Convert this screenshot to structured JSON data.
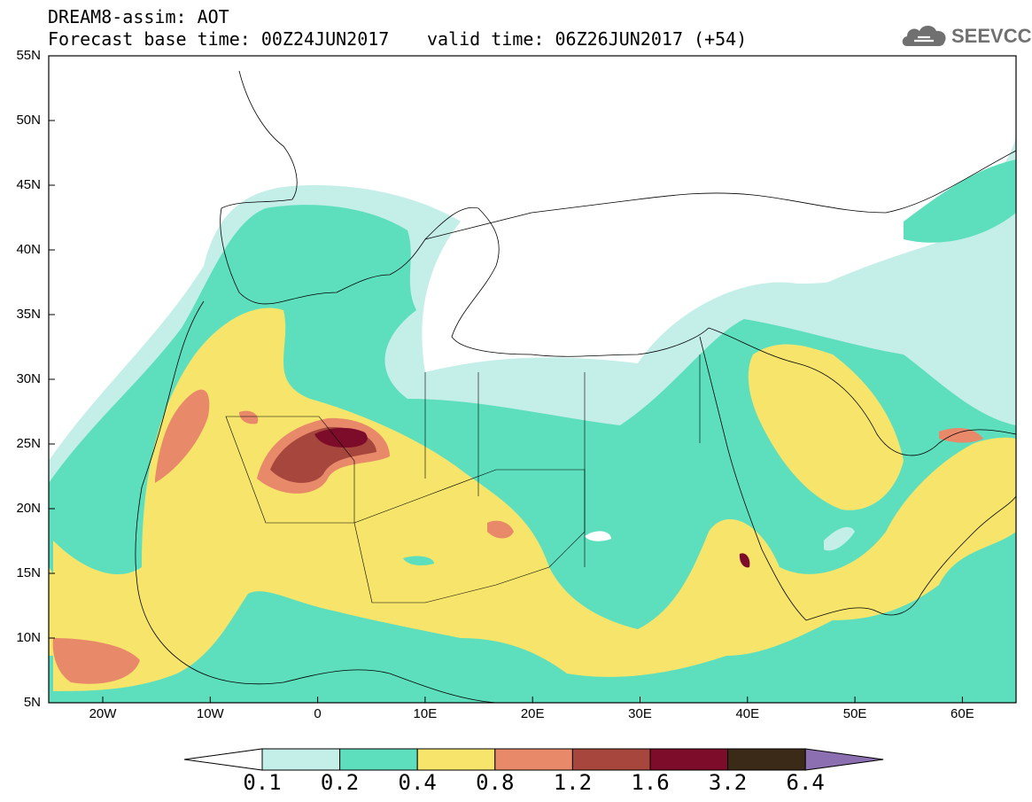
{
  "header": {
    "line1": "DREAM8-assim: AOT",
    "line2": "Forecast base time: 00Z24JUN2017",
    "line3": "valid time: 06Z26JUN2017 (+54)"
  },
  "logo": {
    "text": "SEEVCCC",
    "icon": "cloud-icon",
    "color": "#707070"
  },
  "map": {
    "lat_ticks": [
      "55N",
      "50N",
      "45N",
      "40N",
      "35N",
      "30N",
      "25N",
      "20N",
      "15N",
      "10N",
      "5N"
    ],
    "lon_ticks": [
      "20W",
      "10W",
      "0",
      "10E",
      "20E",
      "30E",
      "40E",
      "50E",
      "60E"
    ]
  },
  "colorbar": {
    "labels": [
      "0.1",
      "0.2",
      "0.4",
      "0.8",
      "1.2",
      "1.6",
      "3.2",
      "6.4"
    ],
    "colors": [
      "#ffffff",
      "#c4eee8",
      "#5ddfbe",
      "#f6e46b",
      "#e8896a",
      "#a7463d",
      "#7d0b2a",
      "#3b2a17",
      "#8c6fb0"
    ]
  }
}
